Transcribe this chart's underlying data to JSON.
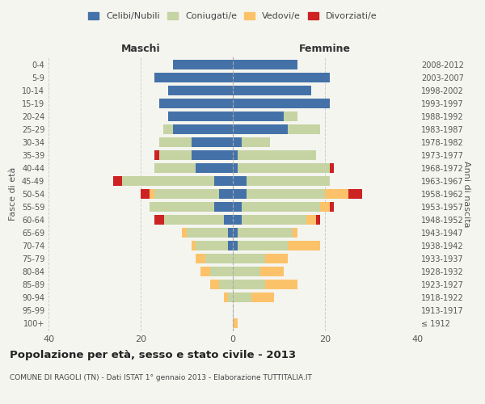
{
  "age_groups": [
    "100+",
    "95-99",
    "90-94",
    "85-89",
    "80-84",
    "75-79",
    "70-74",
    "65-69",
    "60-64",
    "55-59",
    "50-54",
    "45-49",
    "40-44",
    "35-39",
    "30-34",
    "25-29",
    "20-24",
    "15-19",
    "10-14",
    "5-9",
    "0-4"
  ],
  "birth_years": [
    "≤ 1912",
    "1913-1917",
    "1918-1922",
    "1923-1927",
    "1928-1932",
    "1933-1937",
    "1938-1942",
    "1943-1947",
    "1948-1952",
    "1953-1957",
    "1958-1962",
    "1963-1967",
    "1968-1972",
    "1973-1977",
    "1978-1982",
    "1983-1987",
    "1988-1992",
    "1993-1997",
    "1998-2002",
    "2003-2007",
    "2008-2012"
  ],
  "colors": {
    "celibi": "#4472a8",
    "coniugati": "#c5d4a2",
    "vedovi": "#fcc26a",
    "divorziati": "#cc2222"
  },
  "maschi": {
    "celibi": [
      0,
      0,
      0,
      0,
      0,
      0,
      1,
      1,
      2,
      4,
      3,
      4,
      8,
      9,
      9,
      13,
      14,
      16,
      14,
      17,
      13
    ],
    "coniugati": [
      0,
      0,
      1,
      3,
      5,
      6,
      7,
      9,
      13,
      14,
      14,
      20,
      9,
      7,
      7,
      2,
      0,
      0,
      0,
      0,
      0
    ],
    "vedovi": [
      0,
      0,
      1,
      2,
      2,
      2,
      1,
      1,
      0,
      0,
      1,
      0,
      0,
      0,
      0,
      0,
      0,
      0,
      0,
      0,
      0
    ],
    "divorziati": [
      0,
      0,
      0,
      0,
      0,
      0,
      0,
      0,
      2,
      0,
      2,
      2,
      0,
      1,
      0,
      0,
      0,
      0,
      0,
      0,
      0
    ]
  },
  "femmine": {
    "celibi": [
      0,
      0,
      0,
      0,
      0,
      0,
      1,
      1,
      2,
      2,
      3,
      3,
      1,
      1,
      2,
      12,
      11,
      21,
      17,
      21,
      14
    ],
    "coniugati": [
      0,
      0,
      4,
      7,
      6,
      7,
      11,
      12,
      14,
      17,
      17,
      18,
      20,
      17,
      6,
      7,
      3,
      0,
      0,
      0,
      0
    ],
    "vedovi": [
      1,
      0,
      5,
      7,
      5,
      5,
      7,
      1,
      2,
      2,
      5,
      0,
      0,
      0,
      0,
      0,
      0,
      0,
      0,
      0,
      0
    ],
    "divorziati": [
      0,
      0,
      0,
      0,
      0,
      0,
      0,
      0,
      1,
      1,
      3,
      0,
      1,
      0,
      0,
      0,
      0,
      0,
      0,
      0,
      0
    ]
  },
  "xlim": 40,
  "title": "Popolazione per età, sesso e stato civile - 2013",
  "subtitle": "COMUNE DI RAGOLI (TN) - Dati ISTAT 1° gennaio 2013 - Elaborazione TUTTITALIA.IT",
  "ylabel_left": "Fasce di età",
  "ylabel_right": "Anni di nascita",
  "xlabel_left": "Maschi",
  "xlabel_right": "Femmine",
  "legend_labels": [
    "Celibi/Nubili",
    "Coniugati/e",
    "Vedovi/e",
    "Divorziati/e"
  ],
  "bg_color": "#f5f5f0"
}
